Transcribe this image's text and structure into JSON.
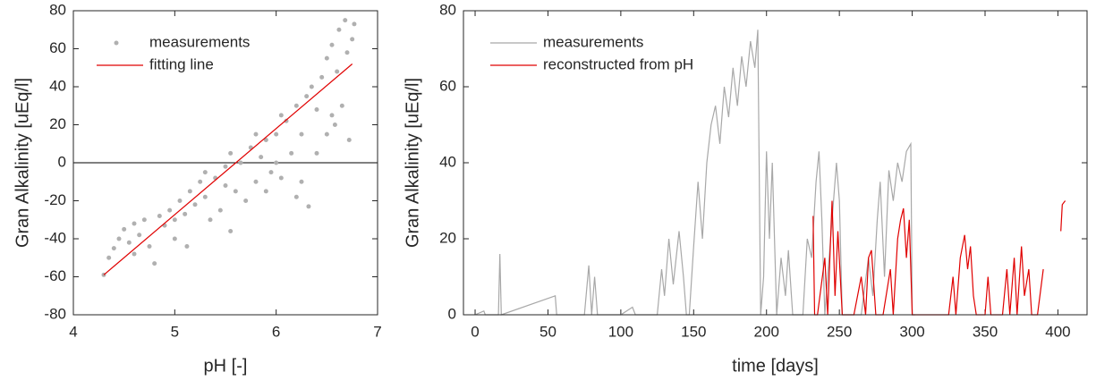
{
  "chart_data": [
    {
      "type": "scatter",
      "xlabel": "pH [-]",
      "ylabel": "Gran Alkalinity [uEq/l]",
      "xlim": [
        4,
        7
      ],
      "ylim": [
        -80,
        80
      ],
      "xticks": [
        4,
        5,
        6,
        7
      ],
      "yticks": [
        -80,
        -60,
        -40,
        -20,
        0,
        20,
        40,
        60,
        80
      ],
      "zero_line": true,
      "legend": "upper left",
      "series": [
        {
          "name": "measurements",
          "style": "markers",
          "color": "#b0b0b0",
          "x": [
            4.3,
            4.35,
            4.4,
            4.45,
            4.5,
            4.55,
            4.6,
            4.65,
            4.7,
            4.75,
            4.8,
            4.85,
            4.9,
            4.95,
            5.0,
            5.05,
            5.1,
            5.15,
            5.12,
            5.2,
            5.25,
            5.3,
            5.35,
            5.4,
            5.45,
            5.5,
            5.55,
            5.55,
            5.6,
            5.65,
            5.7,
            5.75,
            5.8,
            5.85,
            5.9,
            5.95,
            6.0,
            6.05,
            6.1,
            6.15,
            6.2,
            6.25,
            6.25,
            6.3,
            6.32,
            6.35,
            6.4,
            6.45,
            6.5,
            6.5,
            6.55,
            6.55,
            6.6,
            6.62,
            6.65,
            6.68,
            6.7,
            6.72,
            6.75,
            6.77,
            5.0,
            5.3,
            5.5,
            5.9,
            6.0,
            6.2,
            4.6,
            5.8,
            6.05,
            6.4,
            6.58
          ],
          "values": [
            -59,
            -50,
            -45,
            -40,
            -35,
            -42,
            -32,
            -38,
            -30,
            -44,
            -53,
            -28,
            -33,
            -25,
            -30,
            -20,
            -27,
            -15,
            -44,
            -22,
            -10,
            -18,
            -30,
            -8,
            -25,
            -2,
            -36,
            5,
            -15,
            0,
            -20,
            8,
            -10,
            3,
            12,
            -5,
            15,
            -8,
            22,
            5,
            30,
            -10,
            15,
            35,
            -23,
            40,
            28,
            45,
            15,
            55,
            25,
            62,
            48,
            70,
            30,
            75,
            58,
            12,
            65,
            73,
            -40,
            -5,
            -12,
            -15,
            0,
            -18,
            -48,
            15,
            25,
            5,
            20
          ]
        },
        {
          "name": "fitting line",
          "style": "line",
          "color": "#e00000",
          "x": [
            4.3,
            6.75
          ],
          "values": [
            -59,
            52
          ]
        }
      ]
    },
    {
      "type": "line",
      "xlabel": "time [days]",
      "ylabel": "Gran Alkalinity [uEq/l]",
      "xlim": [
        -8,
        420
      ],
      "ylim": [
        0,
        80
      ],
      "xticks": [
        0,
        50,
        100,
        150,
        200,
        250,
        300,
        350,
        400
      ],
      "yticks": [
        0,
        20,
        40,
        60,
        80
      ],
      "legend": "upper left",
      "series": [
        {
          "name": "measurements",
          "style": "line",
          "color": "#a8a8a8",
          "x": [
            0,
            6,
            7,
            16,
            17,
            18,
            55,
            56,
            60,
            75,
            78,
            80,
            82,
            84,
            100,
            108,
            110,
            125,
            128,
            130,
            133,
            136,
            140,
            143,
            145,
            147,
            150,
            153,
            156,
            159,
            162,
            165,
            168,
            171,
            174,
            177,
            180,
            183,
            186,
            189,
            192,
            194,
            196,
            198,
            200,
            202,
            204,
            207,
            210,
            213,
            215,
            218,
            220,
            225,
            228,
            231,
            234,
            236,
            238,
            240,
            242,
            245,
            248,
            250,
            252,
            260,
            265,
            270,
            273,
            276,
            278,
            281,
            284,
            287,
            290,
            293,
            296,
            299,
            300,
            302
          ],
          "values": [
            0,
            1,
            0,
            0,
            16,
            0,
            5,
            0,
            0,
            0,
            13,
            0,
            10,
            0,
            0,
            2,
            0,
            0,
            12,
            5,
            20,
            8,
            22,
            10,
            0,
            0,
            18,
            35,
            20,
            40,
            50,
            55,
            45,
            60,
            52,
            65,
            55,
            68,
            60,
            72,
            65,
            75,
            0,
            10,
            43,
            20,
            40,
            0,
            15,
            5,
            17,
            0,
            0,
            0,
            20,
            15,
            35,
            43,
            25,
            0,
            10,
            25,
            40,
            30,
            0,
            0,
            0,
            15,
            5,
            25,
            35,
            10,
            38,
            30,
            40,
            35,
            43,
            45,
            0,
            0
          ]
        },
        {
          "name": "reconstructed from pH",
          "style": "line",
          "color": "#e00000",
          "x": [
            232,
            233,
            235,
            240,
            242,
            245,
            247,
            249,
            252,
            260,
            265,
            268,
            270,
            272,
            275,
            280,
            285,
            287,
            290,
            292,
            294,
            296,
            298,
            300,
            305,
            310,
            325,
            328,
            330,
            333,
            336,
            338,
            340,
            342,
            344,
            350,
            352,
            354,
            362,
            365,
            367,
            370,
            372,
            375,
            377,
            380,
            382,
            386,
            390,
            396,
            402,
            403,
            405
          ],
          "values": [
            26,
            0,
            0,
            15,
            0,
            30,
            5,
            22,
            0,
            0,
            10,
            0,
            15,
            17,
            0,
            0,
            12,
            0,
            20,
            25,
            28,
            15,
            25,
            0,
            0,
            0,
            0,
            10,
            0,
            15,
            21,
            12,
            18,
            5,
            0,
            0,
            10,
            0,
            0,
            12,
            0,
            15,
            0,
            18,
            5,
            12,
            0,
            0,
            12,
            null,
            22,
            29,
            30
          ]
        }
      ]
    }
  ]
}
